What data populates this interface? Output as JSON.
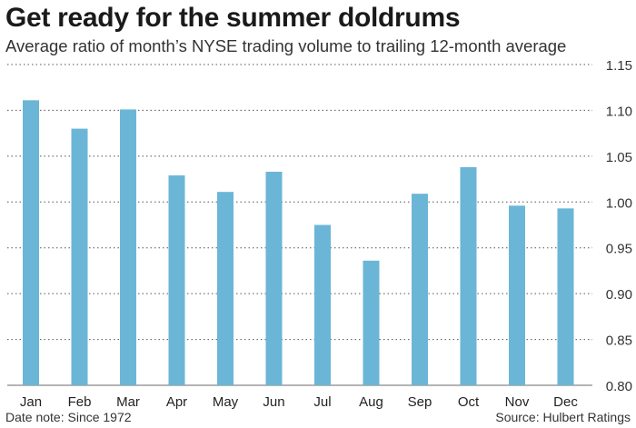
{
  "title": "Get ready for the summer doldrums",
  "subtitle": "Average ratio of month’s NYSE trading volume to trailing 12-month average",
  "footer": {
    "note": "Date note: Since 1972",
    "source": "Source: Hulbert Ratings"
  },
  "colors": {
    "bar": "#6bb6d6",
    "grid": "#555555",
    "axis": "#888888"
  },
  "chart_data": {
    "type": "bar",
    "title": "Get ready for the summer doldrums",
    "subtitle": "Average ratio of month’s NYSE trading volume to trailing 12-month average",
    "xlabel": "",
    "ylabel": "",
    "categories": [
      "Jan",
      "Feb",
      "Mar",
      "Apr",
      "May",
      "Jun",
      "Jul",
      "Aug",
      "Sep",
      "Oct",
      "Nov",
      "Dec"
    ],
    "values": [
      1.111,
      1.08,
      1.101,
      1.029,
      1.011,
      1.033,
      0.975,
      0.936,
      1.009,
      1.038,
      0.996,
      0.993
    ],
    "ylim": [
      0.8,
      1.15
    ],
    "yticks": [
      "0.80",
      "0.85",
      "0.90",
      "0.95",
      "1.00",
      "1.05",
      "1.10",
      "1.15"
    ],
    "grid": "horizontal dotted",
    "y_axis_position": "right"
  }
}
